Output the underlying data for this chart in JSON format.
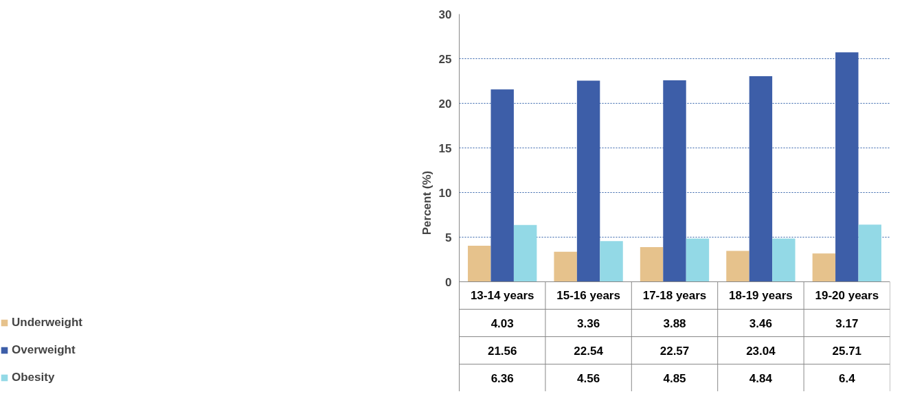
{
  "chart_data": {
    "type": "bar",
    "ylabel": "Percent (%)",
    "categories": [
      "13-14 years",
      "15-16 years",
      "17-18 years",
      "18-19 years",
      "19-20 years"
    ],
    "series": [
      {
        "name": "Underweight",
        "color": "#e6c28c",
        "values": [
          4.03,
          3.36,
          3.88,
          3.46,
          3.17
        ]
      },
      {
        "name": "Overweight",
        "color": "#3d5ea8",
        "values": [
          21.56,
          22.54,
          22.57,
          23.04,
          25.71
        ]
      },
      {
        "name": "Obesity",
        "color": "#93d9e6",
        "values": [
          6.36,
          4.56,
          4.85,
          4.84,
          6.4
        ]
      }
    ],
    "ylim": [
      0,
      30
    ],
    "yticks": [
      0,
      5,
      10,
      15,
      20,
      25,
      30
    ],
    "grid": "y",
    "data_labels": true,
    "legend": "bottom left"
  }
}
